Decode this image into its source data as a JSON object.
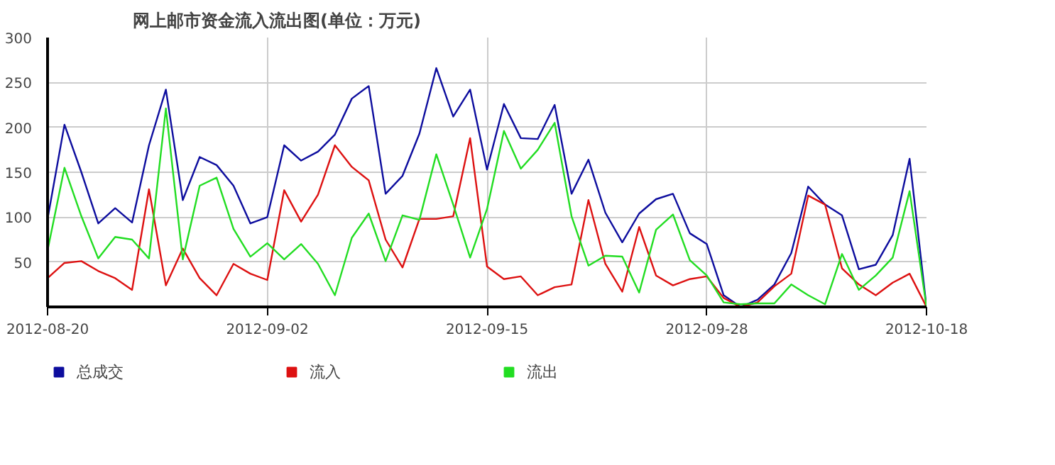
{
  "chart_data": {
    "type": "line",
    "title": "网上邮市资金流入流出图(单位：万元)",
    "categories": [
      "2012-08-20",
      null,
      null,
      null,
      null,
      null,
      null,
      null,
      null,
      null,
      null,
      null,
      null,
      "2012-09-02",
      null,
      null,
      null,
      null,
      null,
      null,
      null,
      null,
      null,
      null,
      null,
      null,
      "2012-09-15",
      null,
      null,
      null,
      null,
      null,
      null,
      null,
      null,
      null,
      null,
      null,
      null,
      "2012-09-28",
      null,
      null,
      null,
      null,
      null,
      null,
      null,
      null,
      null,
      null,
      null,
      null,
      "2012-10-18"
    ],
    "series": [
      {
        "name": "总成交",
        "color": "#0d0d9e",
        "values": [
          98,
          203,
          150,
          93,
          110,
          94,
          180,
          242,
          119,
          167,
          158,
          135,
          93,
          100,
          180,
          163,
          173,
          192,
          232,
          246,
          126,
          146,
          193,
          266,
          212,
          242,
          153,
          226,
          188,
          187,
          225,
          126,
          164,
          105,
          72,
          104,
          120,
          126,
          82,
          70,
          13,
          0,
          8,
          25,
          60,
          134,
          114,
          102,
          42,
          47,
          80,
          165,
          0
        ]
      },
      {
        "name": "流入",
        "color": "#dd1111",
        "values": [
          32,
          49,
          51,
          40,
          32,
          19,
          131,
          24,
          65,
          32,
          13,
          48,
          37,
          30,
          130,
          95,
          125,
          180,
          156,
          141,
          75,
          44,
          98,
          98,
          101,
          188,
          45,
          31,
          34,
          13,
          22,
          25,
          119,
          48,
          17,
          89,
          35,
          24,
          31,
          34,
          10,
          0,
          5,
          23,
          37,
          124,
          114,
          43,
          25,
          13,
          27,
          37,
          0
        ]
      },
      {
        "name": "流出",
        "color": "#22dd22",
        "values": [
          63,
          155,
          101,
          54,
          78,
          75,
          54,
          221,
          53,
          135,
          144,
          87,
          56,
          71,
          53,
          70,
          48,
          13,
          77,
          104,
          51,
          102,
          97,
          170,
          114,
          55,
          109,
          196,
          154,
          175,
          205,
          101,
          46,
          57,
          56,
          16,
          86,
          103,
          52,
          35,
          5,
          3,
          4,
          4,
          25,
          13,
          3,
          59,
          19,
          35,
          55,
          129,
          0
        ]
      }
    ],
    "ylim": [
      0,
      300
    ],
    "yticks": [
      50,
      100,
      150,
      200,
      250,
      300
    ],
    "grid": true,
    "legend": "bottom",
    "marker": "none",
    "line_style": "solid"
  }
}
